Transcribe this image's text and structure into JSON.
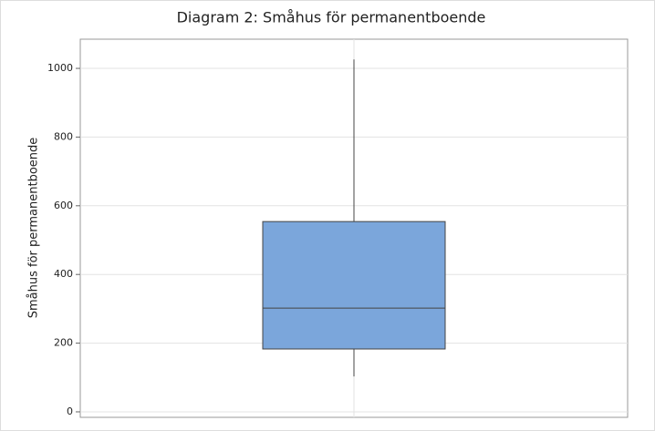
{
  "chart_data": {
    "type": "box",
    "title": "Diagram 2: Småhus för permanentboende",
    "y_label": "Småhus för permanentboende",
    "boxes": [
      {
        "min": 103,
        "q1": 183,
        "median": 302,
        "q3": 554,
        "max": 1026,
        "color": "#7ba6db"
      }
    ],
    "ylim": [
      -16,
      1085
    ],
    "yticks": [
      0,
      200,
      400,
      600,
      800,
      1000
    ],
    "grid": true
  }
}
